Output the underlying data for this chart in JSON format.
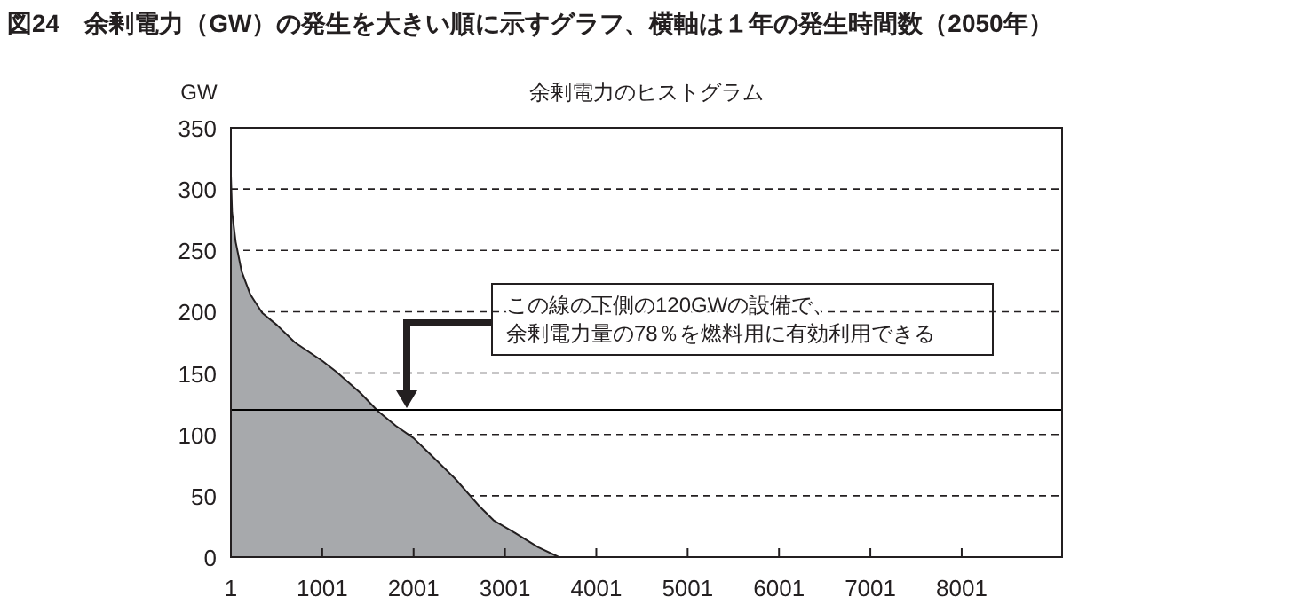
{
  "chart_data": {
    "type": "area",
    "title": "図24　余剰電力（GW）の発生を大きい順に示すグラフ、横軸は１年の発生時間数（2050年）",
    "subtitle": "余剰電力のヒストグラム",
    "ylabel": "GW",
    "x": [
      1,
      14,
      53,
      118,
      214,
      344,
      507,
      701,
      1001,
      1157,
      1417,
      1611,
      1806,
      2001,
      2195,
      2455,
      2715,
      2877,
      3105,
      3365,
      3592
    ],
    "series": [
      {
        "color": "#a7a9ac",
        "values": [
          311,
          281,
          257,
          233,
          214,
          199,
          189,
          175,
          160,
          151,
          134,
          119,
          107,
          97,
          83,
          64,
          42,
          30,
          20,
          8,
          0
        ]
      }
    ],
    "xlim": [
      1,
      9100
    ],
    "xticks": [
      1,
      1001,
      2001,
      3001,
      4001,
      5001,
      6001,
      7001,
      8001
    ],
    "ylim": [
      0,
      350
    ],
    "yticks": [
      0,
      50,
      100,
      150,
      200,
      250,
      300,
      350
    ],
    "grid": "y",
    "ref_lines": [
      {
        "axis": "y",
        "value": 120,
        "color": "#000000"
      }
    ],
    "annotations": [
      "この線の下側の120GWの設備で、",
      "余剰電力量の78％を燃料用に有効利用できる"
    ]
  }
}
